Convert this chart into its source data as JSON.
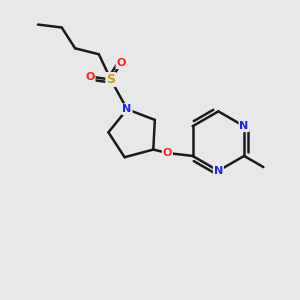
{
  "background_color": "#e8e8e8",
  "bond_color": "#1a1a1a",
  "N_color": "#2020ff",
  "O_color": "#ff2020",
  "S_color": "#c8a000",
  "bond_width": 1.8,
  "figsize": [
    3.0,
    3.0
  ],
  "dpi": 100,
  "xlim": [
    0,
    10
  ],
  "ylim": [
    0,
    10
  ]
}
